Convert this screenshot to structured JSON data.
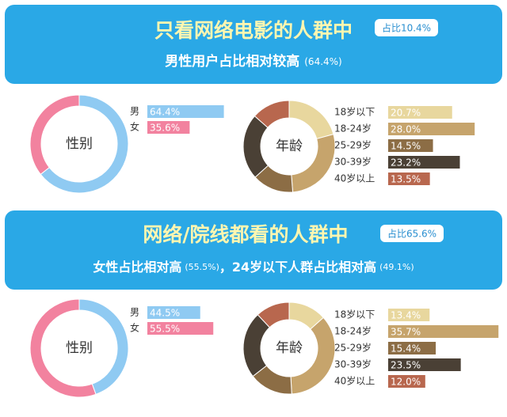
{
  "panels": [
    {
      "title": "只看网络电影的人群中",
      "badge": "占比10.4%",
      "subtitle": [
        "男性用户占比相对较高",
        "(64.4%)"
      ]
    },
    {
      "title": "网络/院线都看的人群中",
      "badge": "占比65.6%",
      "subtitle": [
        "女性占比相对高",
        "(55.5%)",
        "，24岁以下人群占比相对高",
        "(49.1%)"
      ]
    }
  ],
  "chart_data": [
    {
      "type": "donut",
      "title": "性别",
      "categories": [
        "男",
        "女"
      ],
      "values": [
        64.4,
        35.6
      ],
      "value_labels": [
        "64.4%",
        "35.6%"
      ],
      "colors": [
        "#8fcaf2",
        "#f2829f"
      ]
    },
    {
      "type": "donut",
      "title": "年龄",
      "categories": [
        "18岁以下",
        "18-24岁",
        "25-29岁",
        "30-39岁",
        "40岁以上"
      ],
      "values": [
        20.7,
        28.0,
        14.5,
        23.2,
        13.5
      ],
      "value_labels": [
        "20.7%",
        "28.0%",
        "14.5%",
        "23.2%",
        "13.5%"
      ],
      "colors": [
        "#e8d79e",
        "#c6a46c",
        "#8c6d45",
        "#4a4035",
        "#b8674e"
      ]
    },
    {
      "type": "donut",
      "title": "性别",
      "categories": [
        "男",
        "女"
      ],
      "values": [
        44.5,
        55.5
      ],
      "value_labels": [
        "44.5%",
        "55.5%"
      ],
      "colors": [
        "#8fcaf2",
        "#f2829f"
      ]
    },
    {
      "type": "donut",
      "title": "年龄",
      "categories": [
        "18岁以下",
        "18-24岁",
        "25-29岁",
        "30-39岁",
        "40岁以上"
      ],
      "values": [
        13.4,
        35.7,
        15.4,
        23.5,
        12.0
      ],
      "value_labels": [
        "13.4%",
        "35.7%",
        "15.4%",
        "23.5%",
        "12.0%"
      ],
      "colors": [
        "#e8d79e",
        "#c6a46c",
        "#8c6d45",
        "#4a4035",
        "#b8674e"
      ]
    }
  ]
}
